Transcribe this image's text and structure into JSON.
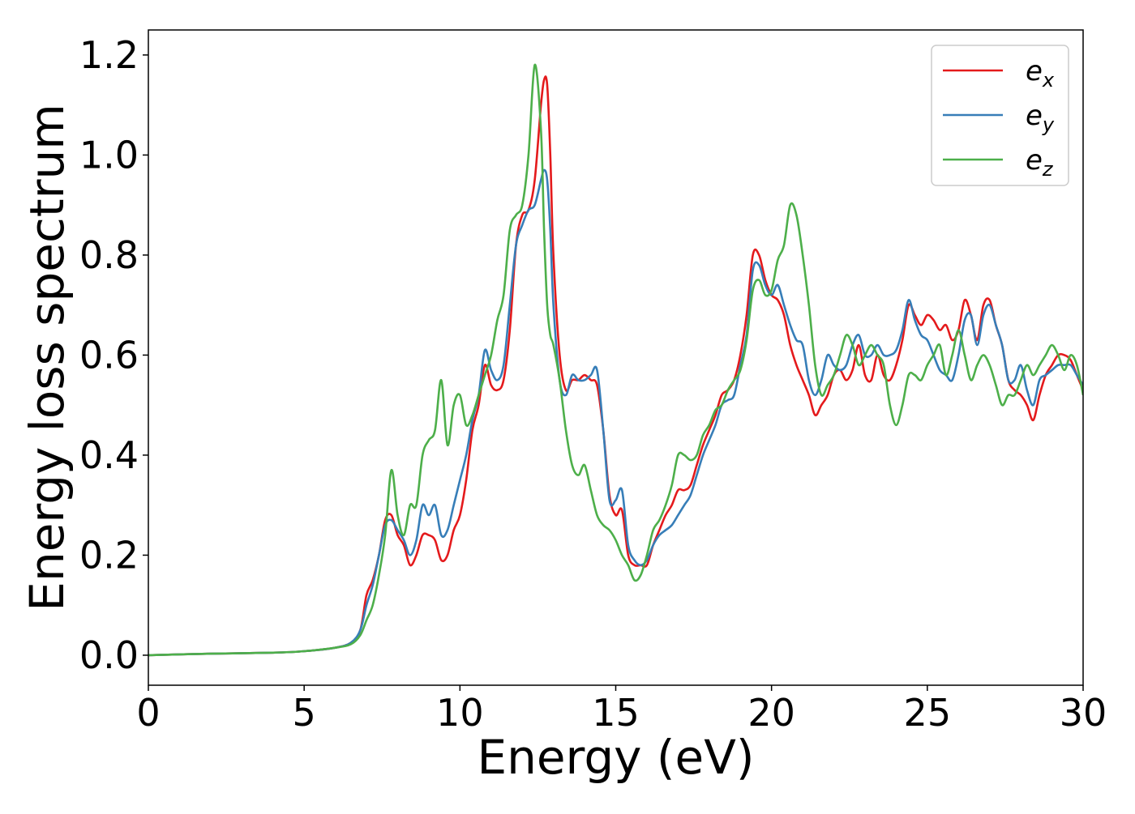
{
  "chart_data": {
    "type": "line",
    "title": "",
    "xlabel": "Energy (eV)",
    "ylabel": "Energy loss spectrum",
    "xlim": [
      0,
      30
    ],
    "ylim": [
      -0.06,
      1.25
    ],
    "xticks": [
      0,
      5,
      10,
      15,
      20,
      25,
      30
    ],
    "xtick_labels": [
      "0",
      "5",
      "10",
      "15",
      "20",
      "25",
      "30"
    ],
    "yticks": [
      0.0,
      0.2,
      0.4,
      0.6,
      0.8,
      1.0,
      1.2
    ],
    "ytick_labels": [
      "0.0",
      "0.2",
      "0.4",
      "0.6",
      "0.8",
      "1.0",
      "1.2"
    ],
    "grid": false,
    "legend_position": "top-right",
    "series": [
      {
        "name": "e_x",
        "label_main": "e",
        "label_sub": "x",
        "color": "#e41a1c",
        "x": [
          0,
          2,
          4,
          5,
          6,
          6.5,
          6.8,
          7.0,
          7.2,
          7.4,
          7.6,
          7.8,
          8.0,
          8.2,
          8.4,
          8.6,
          8.8,
          9.0,
          9.2,
          9.4,
          9.6,
          9.8,
          10.0,
          10.2,
          10.4,
          10.6,
          10.8,
          11.0,
          11.2,
          11.4,
          11.6,
          11.8,
          12.0,
          12.2,
          12.4,
          12.6,
          12.7,
          12.8,
          12.9,
          13.0,
          13.2,
          13.4,
          13.6,
          13.8,
          14.0,
          14.2,
          14.4,
          14.6,
          14.8,
          15.0,
          15.2,
          15.4,
          15.6,
          15.8,
          16.0,
          16.2,
          16.4,
          16.6,
          16.8,
          17.0,
          17.2,
          17.4,
          17.6,
          17.8,
          18.0,
          18.2,
          18.4,
          18.6,
          18.8,
          19.0,
          19.2,
          19.4,
          19.6,
          19.8,
          20.0,
          20.2,
          20.4,
          20.6,
          20.8,
          21.0,
          21.2,
          21.4,
          21.6,
          21.8,
          22.0,
          22.2,
          22.4,
          22.6,
          22.8,
          23.0,
          23.2,
          23.4,
          23.6,
          23.8,
          24.0,
          24.2,
          24.4,
          24.6,
          24.8,
          25.0,
          25.2,
          25.4,
          25.6,
          25.8,
          26.0,
          26.2,
          26.4,
          26.6,
          26.8,
          27.0,
          27.2,
          27.4,
          27.6,
          27.8,
          28.0,
          28.2,
          28.4,
          28.6,
          28.8,
          29.0,
          29.2,
          29.4,
          29.6,
          29.8,
          30.0
        ],
        "y": [
          0.0,
          0.003,
          0.005,
          0.008,
          0.015,
          0.025,
          0.05,
          0.12,
          0.15,
          0.2,
          0.27,
          0.28,
          0.24,
          0.22,
          0.18,
          0.2,
          0.24,
          0.24,
          0.23,
          0.19,
          0.2,
          0.25,
          0.28,
          0.35,
          0.45,
          0.5,
          0.58,
          0.54,
          0.53,
          0.55,
          0.65,
          0.82,
          0.88,
          0.89,
          0.95,
          1.1,
          1.15,
          1.14,
          1.0,
          0.8,
          0.6,
          0.53,
          0.55,
          0.55,
          0.56,
          0.55,
          0.54,
          0.45,
          0.32,
          0.28,
          0.29,
          0.2,
          0.18,
          0.18,
          0.18,
          0.22,
          0.25,
          0.28,
          0.3,
          0.33,
          0.33,
          0.34,
          0.38,
          0.42,
          0.45,
          0.48,
          0.52,
          0.53,
          0.55,
          0.6,
          0.68,
          0.8,
          0.8,
          0.75,
          0.72,
          0.71,
          0.68,
          0.62,
          0.58,
          0.55,
          0.52,
          0.48,
          0.5,
          0.52,
          0.56,
          0.57,
          0.55,
          0.57,
          0.62,
          0.56,
          0.55,
          0.6,
          0.56,
          0.55,
          0.58,
          0.63,
          0.7,
          0.68,
          0.66,
          0.68,
          0.67,
          0.65,
          0.66,
          0.63,
          0.65,
          0.71,
          0.68,
          0.63,
          0.7,
          0.71,
          0.66,
          0.62,
          0.55,
          0.53,
          0.52,
          0.5,
          0.47,
          0.52,
          0.56,
          0.58,
          0.6,
          0.6,
          0.59,
          0.56,
          0.53
        ]
      },
      {
        "name": "e_y",
        "label_main": "e",
        "label_sub": "y",
        "color": "#377eb8",
        "x": [
          0,
          2,
          4,
          5,
          6,
          6.5,
          6.8,
          7.0,
          7.2,
          7.4,
          7.6,
          7.8,
          8.0,
          8.2,
          8.4,
          8.6,
          8.8,
          9.0,
          9.2,
          9.4,
          9.6,
          9.8,
          10.0,
          10.2,
          10.4,
          10.6,
          10.8,
          11.0,
          11.2,
          11.4,
          11.6,
          11.8,
          12.0,
          12.2,
          12.4,
          12.6,
          12.7,
          12.8,
          12.9,
          13.0,
          13.2,
          13.4,
          13.6,
          13.8,
          14.0,
          14.2,
          14.4,
          14.6,
          14.8,
          15.0,
          15.2,
          15.4,
          15.6,
          15.8,
          16.0,
          16.2,
          16.4,
          16.6,
          16.8,
          17.0,
          17.2,
          17.4,
          17.6,
          17.8,
          18.0,
          18.2,
          18.4,
          18.6,
          18.8,
          19.0,
          19.2,
          19.4,
          19.6,
          19.8,
          20.0,
          20.2,
          20.4,
          20.6,
          20.8,
          21.0,
          21.2,
          21.4,
          21.6,
          21.8,
          22.0,
          22.2,
          22.4,
          22.6,
          22.8,
          23.0,
          23.2,
          23.4,
          23.6,
          23.8,
          24.0,
          24.2,
          24.4,
          24.6,
          24.8,
          25.0,
          25.2,
          25.4,
          25.6,
          25.8,
          26.0,
          26.2,
          26.4,
          26.6,
          26.8,
          27.0,
          27.2,
          27.4,
          27.6,
          27.8,
          28.0,
          28.2,
          28.4,
          28.6,
          28.8,
          29.0,
          29.2,
          29.4,
          29.6,
          29.8,
          30.0
        ],
        "y": [
          0.0,
          0.003,
          0.005,
          0.008,
          0.015,
          0.025,
          0.05,
          0.1,
          0.14,
          0.2,
          0.26,
          0.27,
          0.25,
          0.23,
          0.2,
          0.23,
          0.3,
          0.28,
          0.3,
          0.24,
          0.25,
          0.3,
          0.35,
          0.4,
          0.47,
          0.52,
          0.61,
          0.57,
          0.55,
          0.58,
          0.7,
          0.82,
          0.86,
          0.89,
          0.9,
          0.95,
          0.97,
          0.95,
          0.85,
          0.7,
          0.55,
          0.52,
          0.56,
          0.55,
          0.55,
          0.56,
          0.57,
          0.45,
          0.31,
          0.31,
          0.33,
          0.22,
          0.19,
          0.18,
          0.19,
          0.22,
          0.24,
          0.25,
          0.26,
          0.28,
          0.3,
          0.32,
          0.36,
          0.4,
          0.43,
          0.46,
          0.5,
          0.51,
          0.52,
          0.58,
          0.64,
          0.77,
          0.78,
          0.74,
          0.72,
          0.74,
          0.7,
          0.66,
          0.63,
          0.62,
          0.55,
          0.52,
          0.55,
          0.6,
          0.58,
          0.57,
          0.58,
          0.62,
          0.64,
          0.6,
          0.6,
          0.62,
          0.6,
          0.6,
          0.61,
          0.65,
          0.71,
          0.67,
          0.64,
          0.63,
          0.6,
          0.57,
          0.56,
          0.55,
          0.6,
          0.67,
          0.68,
          0.62,
          0.68,
          0.7,
          0.66,
          0.62,
          0.55,
          0.55,
          0.58,
          0.53,
          0.5,
          0.55,
          0.56,
          0.57,
          0.58,
          0.58,
          0.58,
          0.56,
          0.54
        ]
      },
      {
        "name": "e_z",
        "label_main": "e",
        "label_sub": "z",
        "color": "#4daf4a",
        "x": [
          0,
          2,
          4,
          5,
          6,
          6.5,
          6.8,
          7.0,
          7.2,
          7.4,
          7.6,
          7.8,
          8.0,
          8.2,
          8.4,
          8.6,
          8.8,
          9.0,
          9.2,
          9.4,
          9.6,
          9.8,
          10.0,
          10.2,
          10.4,
          10.6,
          10.8,
          11.0,
          11.2,
          11.4,
          11.6,
          11.8,
          12.0,
          12.2,
          12.4,
          12.6,
          12.7,
          12.8,
          12.9,
          13.0,
          13.2,
          13.4,
          13.6,
          13.8,
          14.0,
          14.2,
          14.4,
          14.6,
          14.8,
          15.0,
          15.2,
          15.4,
          15.6,
          15.8,
          16.0,
          16.2,
          16.4,
          16.6,
          16.8,
          17.0,
          17.2,
          17.4,
          17.6,
          17.8,
          18.0,
          18.2,
          18.4,
          18.6,
          18.8,
          19.0,
          19.2,
          19.4,
          19.6,
          19.8,
          20.0,
          20.2,
          20.4,
          20.6,
          20.8,
          21.0,
          21.2,
          21.4,
          21.6,
          21.8,
          22.0,
          22.2,
          22.4,
          22.6,
          22.8,
          23.0,
          23.2,
          23.4,
          23.6,
          23.8,
          24.0,
          24.2,
          24.4,
          24.6,
          24.8,
          25.0,
          25.2,
          25.4,
          25.6,
          25.8,
          26.0,
          26.2,
          26.4,
          26.6,
          26.8,
          27.0,
          27.2,
          27.4,
          27.6,
          27.8,
          28.0,
          28.2,
          28.4,
          28.6,
          28.8,
          29.0,
          29.2,
          29.4,
          29.6,
          29.8,
          30.0
        ],
        "y": [
          0.0,
          0.003,
          0.005,
          0.008,
          0.015,
          0.022,
          0.04,
          0.07,
          0.1,
          0.16,
          0.24,
          0.37,
          0.28,
          0.24,
          0.3,
          0.3,
          0.4,
          0.43,
          0.45,
          0.55,
          0.42,
          0.5,
          0.52,
          0.46,
          0.48,
          0.52,
          0.56,
          0.6,
          0.67,
          0.72,
          0.85,
          0.88,
          0.9,
          1.0,
          1.18,
          1.05,
          0.85,
          0.7,
          0.64,
          0.62,
          0.55,
          0.45,
          0.38,
          0.36,
          0.38,
          0.33,
          0.28,
          0.26,
          0.25,
          0.23,
          0.2,
          0.18,
          0.15,
          0.16,
          0.2,
          0.25,
          0.27,
          0.3,
          0.34,
          0.4,
          0.4,
          0.39,
          0.4,
          0.44,
          0.46,
          0.49,
          0.5,
          0.53,
          0.55,
          0.57,
          0.63,
          0.73,
          0.75,
          0.72,
          0.73,
          0.79,
          0.82,
          0.9,
          0.88,
          0.8,
          0.7,
          0.58,
          0.52,
          0.54,
          0.56,
          0.6,
          0.64,
          0.62,
          0.58,
          0.6,
          0.62,
          0.6,
          0.58,
          0.5,
          0.46,
          0.5,
          0.56,
          0.56,
          0.55,
          0.58,
          0.6,
          0.62,
          0.56,
          0.6,
          0.65,
          0.6,
          0.55,
          0.58,
          0.6,
          0.58,
          0.54,
          0.5,
          0.52,
          0.52,
          0.55,
          0.58,
          0.56,
          0.58,
          0.6,
          0.62,
          0.6,
          0.57,
          0.6,
          0.58,
          0.52
        ]
      }
    ]
  }
}
